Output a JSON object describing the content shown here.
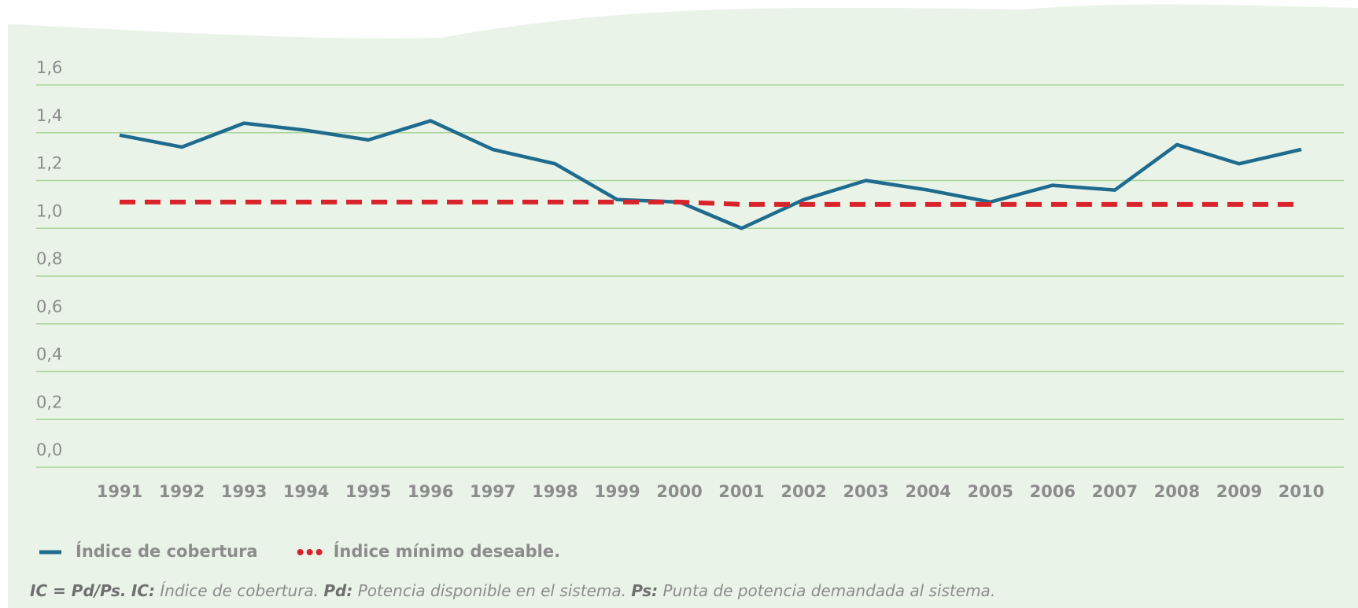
{
  "chart_data": {
    "type": "line",
    "categories": [
      "1991",
      "1992",
      "1993",
      "1994",
      "1995",
      "1996",
      "1997",
      "1998",
      "1999",
      "2000",
      "2001",
      "2002",
      "2003",
      "2004",
      "2005",
      "2006",
      "2007",
      "2008",
      "2009",
      "2010"
    ],
    "series": [
      {
        "name": "Índice de cobertura",
        "color": "#1f6b8e",
        "style": "solid",
        "values": [
          1.39,
          1.34,
          1.44,
          1.41,
          1.37,
          1.45,
          1.33,
          1.27,
          1.12,
          1.11,
          1.0,
          1.12,
          1.2,
          1.16,
          1.11,
          1.18,
          1.16,
          1.35,
          1.27,
          1.33
        ]
      },
      {
        "name": "Índice mínimo deseable.",
        "color": "#d9232b",
        "style": "dashed",
        "values": [
          1.11,
          1.11,
          1.11,
          1.11,
          1.11,
          1.11,
          1.11,
          1.11,
          1.11,
          1.11,
          1.1,
          1.1,
          1.1,
          1.1,
          1.1,
          1.1,
          1.1,
          1.1,
          1.1,
          1.1
        ]
      }
    ],
    "ylim": [
      0,
      1.6
    ],
    "yticks": [
      {
        "value": 0,
        "label": "0,0"
      },
      {
        "value": 0.2,
        "label": "0,2"
      },
      {
        "value": 0.4,
        "label": "0,4"
      },
      {
        "value": 0.6,
        "label": "0,6"
      },
      {
        "value": 0.8,
        "label": "0,8"
      },
      {
        "value": 1.0,
        "label": "1,0"
      },
      {
        "value": 1.2,
        "label": "1,2"
      },
      {
        "value": 1.4,
        "label": "1,4"
      },
      {
        "value": 1.6,
        "label": "1,6"
      }
    ],
    "grid": true,
    "legend": "bottom-left",
    "footnote": [
      {
        "text": "IC = Pd/Ps.",
        "bold": true
      },
      {
        "text": " ",
        "bold": false
      },
      {
        "text": "IC:",
        "bold": true
      },
      {
        "text": " Índice de cobertura.  ",
        "bold": false
      },
      {
        "text": "Pd:",
        "bold": true
      },
      {
        "text": " Potencia disponible en el sistema.  ",
        "bold": false
      },
      {
        "text": "Ps:",
        "bold": true
      },
      {
        "text": " Punta de potencia demandada al sistema.",
        "bold": false
      }
    ]
  }
}
